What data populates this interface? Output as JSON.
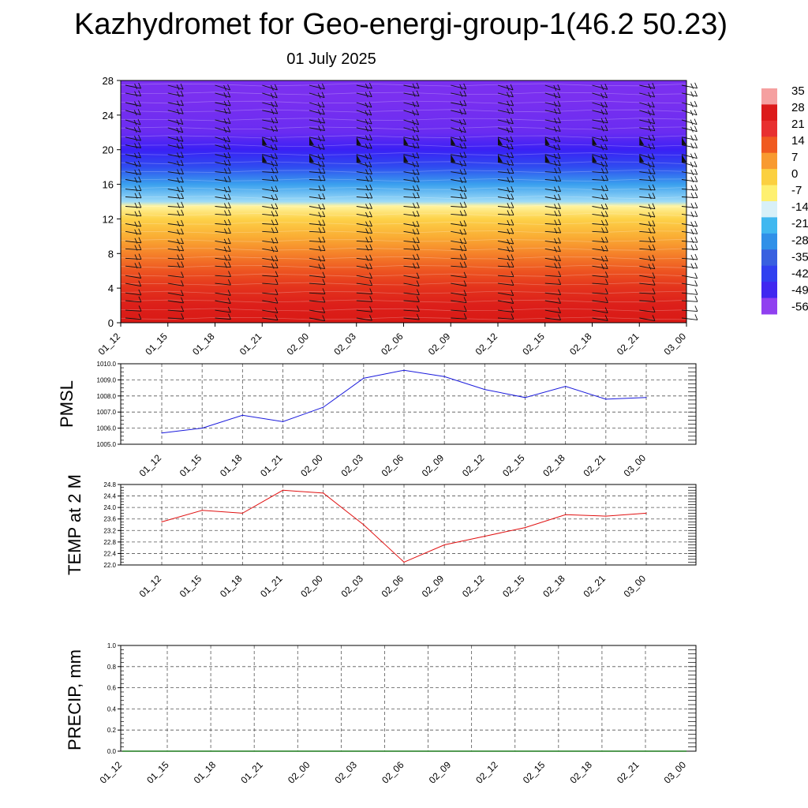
{
  "title": "Kazhydromet for Geo-energi-group-1(46.2 50.23)",
  "subtitle": "01 July 2025",
  "colors": {
    "pmsl_line": "#1a1adc",
    "temp_line": "#e01010",
    "precip_line": "#1a7a1a",
    "grid": "#555555"
  },
  "colorbar": {
    "labels": [
      "35",
      "28",
      "21",
      "14",
      "7",
      "0",
      "-7",
      "-14",
      "-21",
      "-28",
      "-35",
      "-42",
      "-49",
      "-56"
    ],
    "colors": [
      "#f5a0a0",
      "#dc1a1a",
      "#e83030",
      "#f05a20",
      "#f89a30",
      "#fbd040",
      "#fef070",
      "#d8f0f8",
      "#40b8f0",
      "#3090e8",
      "#3860e0",
      "#3040f0",
      "#4028f0",
      "#9040f0"
    ]
  },
  "chart_data": [
    {
      "type": "heatmap",
      "name": "temperature-wind-profile",
      "x": [
        "01_12",
        "01_15",
        "01_18",
        "01_21",
        "02_00",
        "02_03",
        "02_06",
        "02_09",
        "02_12",
        "02_15",
        "02_18",
        "02_21",
        "03_00"
      ],
      "ylim": [
        0,
        28
      ],
      "yticks": [
        "0",
        "4",
        "8",
        "12",
        "16",
        "20",
        "24",
        "28"
      ],
      "bands": [
        {
          "level": 0,
          "value": 30
        },
        {
          "level": 2,
          "value": 28
        },
        {
          "level": 4,
          "value": 24
        },
        {
          "level": 6,
          "value": 18
        },
        {
          "level": 8,
          "value": 12
        },
        {
          "level": 10,
          "value": 6
        },
        {
          "level": 12,
          "value": 0
        },
        {
          "level": 13.5,
          "value": -10
        },
        {
          "level": 14,
          "value": -18
        },
        {
          "level": 16,
          "value": -28
        },
        {
          "level": 18,
          "value": -42
        },
        {
          "level": 20,
          "value": -52
        },
        {
          "level": 22,
          "value": -55
        },
        {
          "level": 26,
          "value": -56
        },
        {
          "level": 28,
          "value": -56
        }
      ]
    },
    {
      "type": "line",
      "name": "pmsl",
      "ylabel": "PMSL",
      "x": [
        "01_12",
        "01_15",
        "01_18",
        "01_21",
        "02_00",
        "02_03",
        "02_06",
        "02_09",
        "02_12",
        "02_15",
        "02_18",
        "02_21",
        "03_00"
      ],
      "values": [
        1005.7,
        1006.0,
        1006.8,
        1006.4,
        1007.3,
        1009.1,
        1009.6,
        1009.2,
        1008.4,
        1007.9,
        1008.6,
        1007.8,
        1007.9
      ],
      "ylim": [
        1005.0,
        1010.0
      ],
      "yticks": [
        "1005.0",
        "1006.0",
        "1007.0",
        "1008.0",
        "1009.0",
        "1010.0"
      ]
    },
    {
      "type": "line",
      "name": "temperature-2m",
      "ylabel": "TEMP at 2 M",
      "x": [
        "01_12",
        "01_15",
        "01_18",
        "01_21",
        "02_00",
        "02_03",
        "02_06",
        "02_09",
        "02_12",
        "02_15",
        "02_18",
        "02_21",
        "03_00"
      ],
      "values": [
        23.5,
        23.9,
        23.8,
        24.6,
        24.5,
        23.4,
        22.1,
        22.7,
        23.0,
        23.3,
        23.75,
        23.7,
        23.8
      ],
      "ylim": [
        22.0,
        24.8
      ],
      "yticks": [
        "22.0",
        "22.4",
        "22.8",
        "23.2",
        "23.6",
        "24.0",
        "24.4",
        "24.8"
      ]
    },
    {
      "type": "line",
      "name": "precipitation",
      "ylabel": "PRECIP, mm",
      "x": [
        "01_12",
        "01_15",
        "01_18",
        "01_21",
        "02_00",
        "02_03",
        "02_06",
        "02_09",
        "02_12",
        "02_15",
        "02_18",
        "02_21",
        "03_00"
      ],
      "values": [
        0,
        0,
        0,
        0,
        0,
        0,
        0,
        0,
        0,
        0,
        0,
        0,
        0
      ],
      "ylim": [
        0.0,
        1.0
      ],
      "yticks": [
        "0.0",
        "0.2",
        "0.4",
        "0.6",
        "0.8",
        "1.0"
      ]
    }
  ]
}
